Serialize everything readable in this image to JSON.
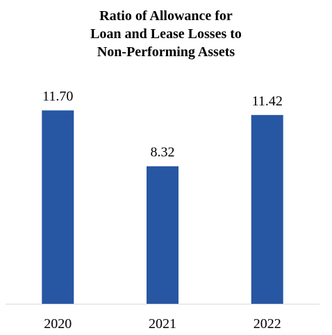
{
  "chart_data": {
    "type": "bar",
    "title_lines": [
      "Ratio of Allowance for",
      "Loan and Lease Losses to",
      "Non-Performing Assets"
    ],
    "categories": [
      "2020",
      "2021",
      "2022"
    ],
    "values": [
      11.7,
      8.32,
      11.42
    ],
    "value_labels": [
      "11.70",
      "8.32",
      "11.42"
    ],
    "xlabel": "",
    "ylabel": "",
    "ylim": [
      0,
      12
    ],
    "grid": false,
    "legend": "none",
    "bar_color": "#2756A3",
    "axis_color": "#D9D9D9"
  }
}
